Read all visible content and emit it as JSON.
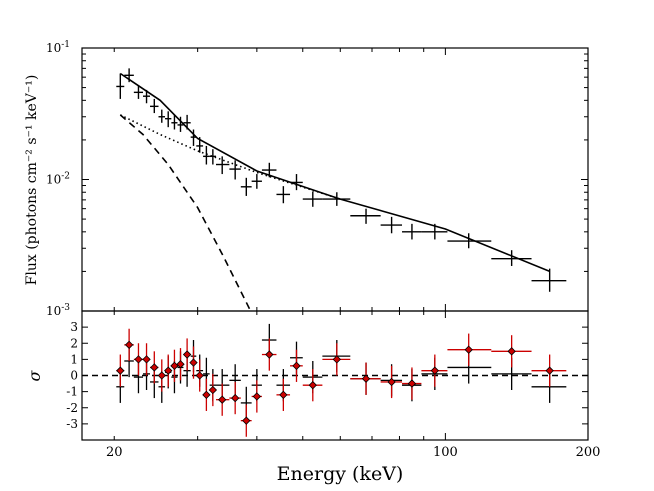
{
  "chart_data": [
    {
      "type": "scatter",
      "panel": "flux",
      "xlabel": "Energy (keV)",
      "ylabel": "Flux (photons cm⁻² s⁻¹ keV⁻¹)",
      "xscale": "log",
      "yscale": "log",
      "xlim": [
        17.1,
        200
      ],
      "ylim": [
        0.001,
        0.1
      ],
      "x_tick_labels": [
        "20",
        "100",
        "200"
      ],
      "y_tick_labels": [
        {
          "base": "10",
          "exp": "-3"
        },
        {
          "base": "10",
          "exp": "-2"
        },
        {
          "base": "10",
          "exp": "-1"
        }
      ],
      "series": [
        {
          "style": "black crosses with error bars",
          "color": "#000000",
          "points": [
            {
              "x": 20.6,
              "x_lo": 20.2,
              "x_hi": 21.0,
              "y": 0.051,
              "y_lo": 0.041,
              "y_hi": 0.064
            },
            {
              "x": 21.5,
              "x_lo": 21.0,
              "x_hi": 22.0,
              "y": 0.062,
              "y_lo": 0.055,
              "y_hi": 0.07
            },
            {
              "x": 22.5,
              "x_lo": 22.0,
              "x_hi": 23.0,
              "y": 0.046,
              "y_lo": 0.041,
              "y_hi": 0.052
            },
            {
              "x": 23.4,
              "x_lo": 23.0,
              "x_hi": 23.8,
              "y": 0.043,
              "y_lo": 0.038,
              "y_hi": 0.048
            },
            {
              "x": 24.3,
              "x_lo": 23.8,
              "x_hi": 24.8,
              "y": 0.036,
              "y_lo": 0.032,
              "y_hi": 0.041
            },
            {
              "x": 25.2,
              "x_lo": 24.8,
              "x_hi": 25.6,
              "y": 0.03,
              "y_lo": 0.027,
              "y_hi": 0.034
            },
            {
              "x": 26.0,
              "x_lo": 25.6,
              "x_hi": 26.4,
              "y": 0.029,
              "y_lo": 0.025,
              "y_hi": 0.033
            },
            {
              "x": 26.8,
              "x_lo": 26.4,
              "x_hi": 27.2,
              "y": 0.027,
              "y_lo": 0.024,
              "y_hi": 0.031
            },
            {
              "x": 27.6,
              "x_lo": 27.2,
              "x_hi": 28.0,
              "y": 0.026,
              "y_lo": 0.023,
              "y_hi": 0.03
            },
            {
              "x": 28.5,
              "x_lo": 28.0,
              "x_hi": 29.0,
              "y": 0.027,
              "y_lo": 0.024,
              "y_hi": 0.031
            },
            {
              "x": 29.4,
              "x_lo": 29.0,
              "x_hi": 29.8,
              "y": 0.021,
              "y_lo": 0.018,
              "y_hi": 0.024
            },
            {
              "x": 30.3,
              "x_lo": 29.8,
              "x_hi": 30.8,
              "y": 0.018,
              "y_lo": 0.016,
              "y_hi": 0.021
            },
            {
              "x": 31.3,
              "x_lo": 30.8,
              "x_hi": 31.8,
              "y": 0.015,
              "y_lo": 0.013,
              "y_hi": 0.018
            },
            {
              "x": 32.3,
              "x_lo": 31.8,
              "x_hi": 32.8,
              "y": 0.015,
              "y_lo": 0.013,
              "y_hi": 0.017
            },
            {
              "x": 33.8,
              "x_lo": 32.8,
              "x_hi": 35.0,
              "y": 0.013,
              "y_lo": 0.011,
              "y_hi": 0.015
            },
            {
              "x": 36.0,
              "x_lo": 35.0,
              "x_hi": 37.0,
              "y": 0.012,
              "y_lo": 0.01,
              "y_hi": 0.014
            },
            {
              "x": 38.0,
              "x_lo": 37.0,
              "x_hi": 39.0,
              "y": 0.0088,
              "y_lo": 0.0075,
              "y_hi": 0.0103
            },
            {
              "x": 40.0,
              "x_lo": 39.0,
              "x_hi": 41.0,
              "y": 0.0097,
              "y_lo": 0.0085,
              "y_hi": 0.011
            },
            {
              "x": 42.5,
              "x_lo": 41.0,
              "x_hi": 44.0,
              "y": 0.0118,
              "y_lo": 0.0104,
              "y_hi": 0.0134
            },
            {
              "x": 45.5,
              "x_lo": 44.0,
              "x_hi": 47.0,
              "y": 0.0077,
              "y_lo": 0.0066,
              "y_hi": 0.0089
            },
            {
              "x": 48.5,
              "x_lo": 47.0,
              "x_hi": 50.0,
              "y": 0.0095,
              "y_lo": 0.0083,
              "y_hi": 0.011
            },
            {
              "x": 52.5,
              "x_lo": 50.0,
              "x_hi": 55.0,
              "y": 0.0071,
              "y_lo": 0.0062,
              "y_hi": 0.0081
            },
            {
              "x": 59.0,
              "x_lo": 55.0,
              "x_hi": 63.0,
              "y": 0.0071,
              "y_lo": 0.0063,
              "y_hi": 0.008
            },
            {
              "x": 68.0,
              "x_lo": 63.0,
              "x_hi": 73.0,
              "y": 0.0053,
              "y_lo": 0.0046,
              "y_hi": 0.006
            },
            {
              "x": 77.0,
              "x_lo": 73.0,
              "x_hi": 81.0,
              "y": 0.0045,
              "y_lo": 0.0039,
              "y_hi": 0.0052
            },
            {
              "x": 85.0,
              "x_lo": 81.0,
              "x_hi": 89.0,
              "y": 0.004,
              "y_lo": 0.0035,
              "y_hi": 0.0046
            },
            {
              "x": 95.0,
              "x_lo": 89.0,
              "x_hi": 101.0,
              "y": 0.004,
              "y_lo": 0.0035,
              "y_hi": 0.0046
            },
            {
              "x": 112.0,
              "x_lo": 101.0,
              "x_hi": 125.0,
              "y": 0.0034,
              "y_lo": 0.003,
              "y_hi": 0.0039
            },
            {
              "x": 138.0,
              "x_lo": 125.0,
              "x_hi": 152.0,
              "y": 0.0025,
              "y_lo": 0.0022,
              "y_hi": 0.0029
            },
            {
              "x": 166.0,
              "x_lo": 152.0,
              "x_hi": 180.0,
              "y": 0.0017,
              "y_lo": 0.0014,
              "y_hi": 0.0021
            }
          ]
        }
      ],
      "model_lines": [
        {
          "style": "solid",
          "x": [
            20.6,
            25,
            30,
            40,
            60,
            100,
            166
          ],
          "y": [
            0.064,
            0.04,
            0.0205,
            0.0116,
            0.0071,
            0.0042,
            0.002
          ]
        },
        {
          "style": "dotted",
          "x": [
            20.6,
            25,
            30,
            40,
            60
          ],
          "y": [
            0.031,
            0.022,
            0.0165,
            0.0113,
            0.0071
          ]
        },
        {
          "style": "dashed",
          "x": [
            20.6,
            23,
            26,
            30,
            34,
            38.8
          ],
          "y": [
            0.031,
            0.022,
            0.013,
            0.0061,
            0.0026,
            0.001
          ]
        }
      ]
    },
    {
      "type": "scatter",
      "panel": "residuals",
      "ylabel": "σ",
      "xscale": "log",
      "xlim": [
        17.1,
        200
      ],
      "ylim": [
        -4,
        4
      ],
      "y_tick_labels": [
        "-3",
        "-2",
        "-1",
        "0",
        "1",
        "2",
        "3"
      ],
      "y_tick_values": [
        -3,
        -2,
        -1,
        0,
        1,
        2,
        3
      ],
      "reference_line": {
        "y": 0,
        "style": "dashed"
      },
      "series": [
        {
          "style": "black crosses",
          "color": "#000000",
          "points": [
            {
              "x": 20.6,
              "x_lo": 20.2,
              "x_hi": 21.0,
              "y": -0.7
            },
            {
              "x": 21.5,
              "x_lo": 21.0,
              "x_hi": 22.0,
              "y": 0.9
            },
            {
              "x": 22.5,
              "x_lo": 22.0,
              "x_hi": 23.0,
              "y": -0.1
            },
            {
              "x": 23.4,
              "x_lo": 23.0,
              "x_hi": 23.8,
              "y": 0.1
            },
            {
              "x": 24.3,
              "x_lo": 23.8,
              "x_hi": 24.8,
              "y": -0.4
            },
            {
              "x": 25.2,
              "x_lo": 24.8,
              "x_hi": 25.6,
              "y": -0.7
            },
            {
              "x": 26.0,
              "x_lo": 25.6,
              "x_hi": 26.4,
              "y": 0.2
            },
            {
              "x": 26.8,
              "x_lo": 26.4,
              "x_hi": 27.2,
              "y": -0.1
            },
            {
              "x": 27.6,
              "x_lo": 27.2,
              "x_hi": 28.0,
              "y": 0.5
            },
            {
              "x": 28.5,
              "x_lo": 28.0,
              "x_hi": 29.0,
              "y": 0.3
            },
            {
              "x": 29.4,
              "x_lo": 29.0,
              "x_hi": 29.8,
              "y": 1.2
            },
            {
              "x": 30.3,
              "x_lo": 29.8,
              "x_hi": 30.8,
              "y": 0.3
            },
            {
              "x": 31.3,
              "x_lo": 30.8,
              "x_hi": 31.8,
              "y": 0.1
            },
            {
              "x": 32.3,
              "x_lo": 31.8,
              "x_hi": 32.8,
              "y": -0.6
            },
            {
              "x": 33.8,
              "x_lo": 32.8,
              "x_hi": 35.0,
              "y": -0.6
            },
            {
              "x": 36.0,
              "x_lo": 35.0,
              "x_hi": 37.0,
              "y": -0.3
            },
            {
              "x": 38.0,
              "x_lo": 37.0,
              "x_hi": 39.0,
              "y": -1.7
            },
            {
              "x": 40.0,
              "x_lo": 39.0,
              "x_hi": 41.0,
              "y": -0.6
            },
            {
              "x": 42.5,
              "x_lo": 41.0,
              "x_hi": 44.0,
              "y": 2.2
            },
            {
              "x": 45.5,
              "x_lo": 44.0,
              "x_hi": 47.0,
              "y": -0.6
            },
            {
              "x": 48.5,
              "x_lo": 47.0,
              "x_hi": 50.0,
              "y": 1.1
            },
            {
              "x": 52.5,
              "x_lo": 50.0,
              "x_hi": 55.0,
              "y": -0.1
            },
            {
              "x": 59.0,
              "x_lo": 55.0,
              "x_hi": 63.0,
              "y": 1.2
            },
            {
              "x": 68.0,
              "x_lo": 63.0,
              "x_hi": 73.0,
              "y": -0.2
            },
            {
              "x": 77.0,
              "x_lo": 73.0,
              "x_hi": 81.0,
              "y": -0.3
            },
            {
              "x": 85.0,
              "x_lo": 81.0,
              "x_hi": 89.0,
              "y": -0.6
            },
            {
              "x": 95.0,
              "x_lo": 89.0,
              "x_hi": 101.0,
              "y": 0.1
            },
            {
              "x": 112.0,
              "x_lo": 101.0,
              "x_hi": 125.0,
              "y": 0.5
            },
            {
              "x": 138.0,
              "x_lo": 125.0,
              "x_hi": 152.0,
              "y": 0.1
            },
            {
              "x": 166.0,
              "x_lo": 152.0,
              "x_hi": 180.0,
              "y": -0.7
            }
          ]
        },
        {
          "style": "red diamonds",
          "color": "#cc0000",
          "points": [
            {
              "x": 20.6,
              "x_lo": 20.2,
              "x_hi": 21.0,
              "y": 0.3
            },
            {
              "x": 21.5,
              "x_lo": 21.0,
              "x_hi": 22.0,
              "y": 1.9
            },
            {
              "x": 22.5,
              "x_lo": 22.0,
              "x_hi": 23.0,
              "y": 1.0
            },
            {
              "x": 23.4,
              "x_lo": 23.0,
              "x_hi": 23.8,
              "y": 1.0
            },
            {
              "x": 24.3,
              "x_lo": 23.8,
              "x_hi": 24.8,
              "y": 0.5
            },
            {
              "x": 25.2,
              "x_lo": 24.8,
              "x_hi": 25.6,
              "y": 0.0
            },
            {
              "x": 26.0,
              "x_lo": 25.6,
              "x_hi": 26.4,
              "y": 0.3
            },
            {
              "x": 26.8,
              "x_lo": 26.4,
              "x_hi": 27.2,
              "y": 0.6
            },
            {
              "x": 27.6,
              "x_lo": 27.2,
              "x_hi": 28.0,
              "y": 0.7
            },
            {
              "x": 28.5,
              "x_lo": 28.0,
              "x_hi": 29.0,
              "y": 1.3
            },
            {
              "x": 29.4,
              "x_lo": 29.0,
              "x_hi": 29.8,
              "y": 0.8
            },
            {
              "x": 30.3,
              "x_lo": 29.8,
              "x_hi": 30.8,
              "y": 0.0
            },
            {
              "x": 31.3,
              "x_lo": 30.8,
              "x_hi": 31.8,
              "y": -1.2
            },
            {
              "x": 32.3,
              "x_lo": 31.8,
              "x_hi": 32.8,
              "y": -0.9
            },
            {
              "x": 33.8,
              "x_lo": 32.8,
              "x_hi": 35.0,
              "y": -1.5
            },
            {
              "x": 36.0,
              "x_lo": 35.0,
              "x_hi": 37.0,
              "y": -1.4
            },
            {
              "x": 38.0,
              "x_lo": 37.0,
              "x_hi": 39.0,
              "y": -2.8
            },
            {
              "x": 40.0,
              "x_lo": 39.0,
              "x_hi": 41.0,
              "y": -1.3
            },
            {
              "x": 42.5,
              "x_lo": 41.0,
              "x_hi": 44.0,
              "y": 1.3
            },
            {
              "x": 45.5,
              "x_lo": 44.0,
              "x_hi": 47.0,
              "y": -1.2
            },
            {
              "x": 48.5,
              "x_lo": 47.0,
              "x_hi": 50.0,
              "y": 0.6
            },
            {
              "x": 52.5,
              "x_lo": 50.0,
              "x_hi": 55.0,
              "y": -0.6
            },
            {
              "x": 59.0,
              "x_lo": 55.0,
              "x_hi": 63.0,
              "y": 1.0
            },
            {
              "x": 68.0,
              "x_lo": 63.0,
              "x_hi": 73.0,
              "y": -0.2
            },
            {
              "x": 77.0,
              "x_lo": 73.0,
              "x_hi": 81.0,
              "y": -0.4
            },
            {
              "x": 85.0,
              "x_lo": 81.0,
              "x_hi": 89.0,
              "y": -0.5
            },
            {
              "x": 95.0,
              "x_lo": 89.0,
              "x_hi": 101.0,
              "y": 0.3
            },
            {
              "x": 112.0,
              "x_lo": 101.0,
              "x_hi": 125.0,
              "y": 1.6
            },
            {
              "x": 138.0,
              "x_lo": 125.0,
              "x_hi": 152.0,
              "y": 1.5
            },
            {
              "x": 166.0,
              "x_lo": 152.0,
              "x_hi": 180.0,
              "y": 0.3
            }
          ]
        }
      ]
    }
  ]
}
